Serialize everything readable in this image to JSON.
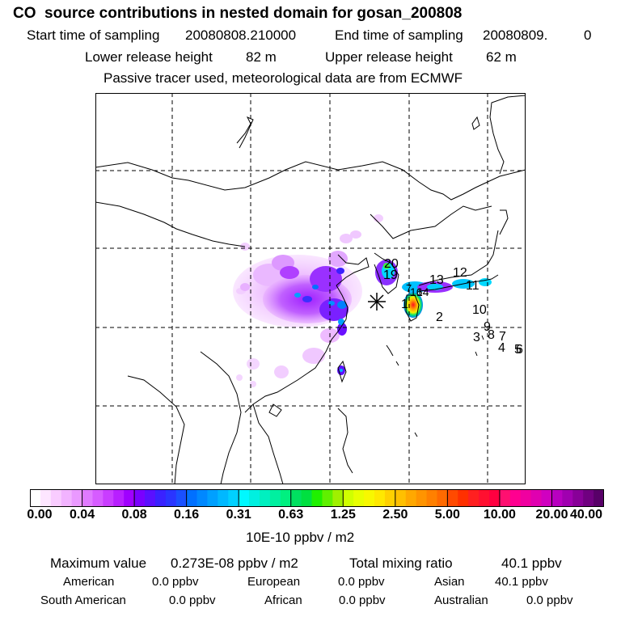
{
  "title": "CO  source contributions in nested domain for gosan_200808",
  "header": {
    "start_label": "Start time of sampling",
    "start_value": "20080808.210000",
    "end_label": "End time of sampling",
    "end_value": "20080809.",
    "end_suffix": "0",
    "lower_label": "Lower release height",
    "lower_value": "82 m",
    "upper_label": "Upper release height",
    "upper_value": "62 m",
    "tracer_note": "Passive tracer used, meteorological data are from ECMWF"
  },
  "map": {
    "release_site_marker": "asterisk",
    "labels": [
      "20",
      "19",
      "7",
      "16",
      "14",
      "13",
      "12",
      "11",
      "1",
      "2",
      "10",
      "9",
      "3",
      "8",
      "7",
      "4",
      "5",
      "6"
    ]
  },
  "colorbar": {
    "ticks": [
      "0.00",
      "0.04",
      "0.08",
      "0.16",
      "0.31",
      "0.63",
      "1.25",
      "2.50",
      "5.00",
      "10.00",
      "20.00",
      "40.00"
    ],
    "unit": "10E-10 ppbv / m2",
    "colors": [
      [
        "#ffffff",
        "#fde6ff",
        "#f9ccff",
        "#f2b3ff",
        "#ea99ff"
      ],
      [
        "#e07aff",
        "#d65cff",
        "#c93dff",
        "#b81fff",
        "#a000ff"
      ],
      [
        "#7a00ff",
        "#5a10ff",
        "#3a22ff",
        "#2a35ff",
        "#1a50ff"
      ],
      [
        "#0070ff",
        "#0088ff",
        "#00a0ff",
        "#00b8ff",
        "#00d0ff"
      ],
      [
        "#00f8ff",
        "#00f0e0",
        "#00f0c0",
        "#00f0a0",
        "#00f080"
      ],
      [
        "#00e060",
        "#00e040",
        "#20f000",
        "#60f000",
        "#a0f000"
      ],
      [
        "#d0ff00",
        "#e8ff00",
        "#f8f800",
        "#ffe800",
        "#ffd000"
      ],
      [
        "#ffc000",
        "#ffa800",
        "#ff9400",
        "#ff8000",
        "#ff6a00"
      ],
      [
        "#ff4a00",
        "#ff3000",
        "#ff2020",
        "#ff1030",
        "#ff0040"
      ],
      [
        "#ff1070",
        "#ff0090",
        "#f000a0",
        "#e000b0",
        "#d000c0"
      ],
      [
        "#b800c0",
        "#a000b0",
        "#880098",
        "#700080",
        "#580068"
      ]
    ]
  },
  "stats": {
    "max_label": "Maximum value",
    "max_value": "0.273E-08 ppbv / m2",
    "total_label": "Total mixing ratio",
    "total_value": "40.1 ppbv"
  },
  "regions": [
    {
      "name": "American",
      "value": "0.0 ppbv"
    },
    {
      "name": "European",
      "value": "0.0 ppbv"
    },
    {
      "name": "Asian",
      "value": "40.1 ppbv"
    },
    {
      "name": "South American",
      "value": "0.0 ppbv"
    },
    {
      "name": "African",
      "value": "0.0 ppbv"
    },
    {
      "name": "Australian",
      "value": "0.0 ppbv"
    }
  ]
}
